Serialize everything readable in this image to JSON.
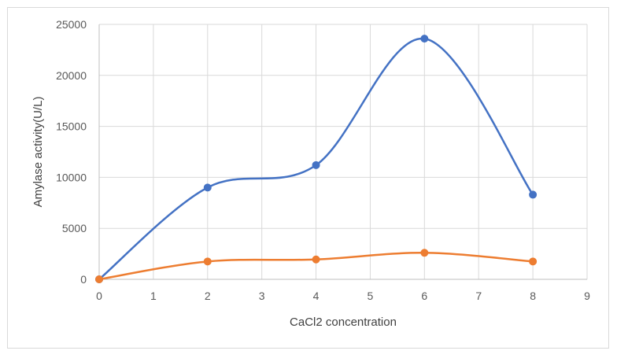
{
  "chart_data": {
    "type": "scatter",
    "title": "",
    "xlabel": "CaCl2 concentration",
    "ylabel": "Amylase activity(U/L)",
    "xlim": [
      0,
      9
    ],
    "ylim": [
      0,
      25000
    ],
    "xticks": [
      0,
      1,
      2,
      3,
      4,
      5,
      6,
      7,
      8,
      9
    ],
    "yticks": [
      0,
      5000,
      10000,
      15000,
      20000,
      25000
    ],
    "grid": true,
    "legend": "none",
    "smooth_lines": true,
    "series": [
      {
        "color": "#4472c4",
        "x": [
          0,
          2,
          4,
          6,
          8
        ],
        "y": [
          0,
          9000,
          11200,
          23600,
          8300
        ]
      },
      {
        "color": "#ed7d31",
        "x": [
          0,
          2,
          4,
          6,
          8
        ],
        "y": [
          0,
          1750,
          1950,
          2600,
          1750
        ]
      }
    ]
  }
}
